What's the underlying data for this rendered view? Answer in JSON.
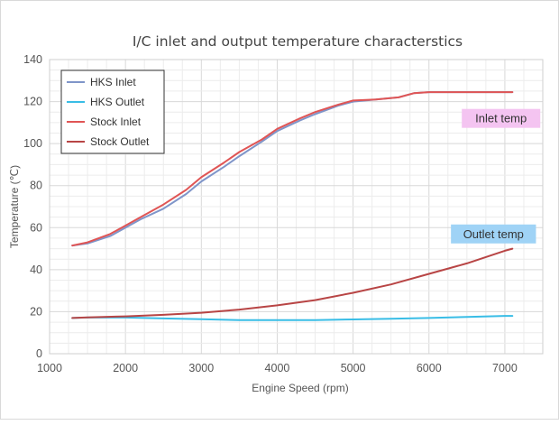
{
  "colors": {
    "hks_inlet": "#7f95c9",
    "hks_outlet": "#39bde6",
    "stock_inlet": "#e05555",
    "stock_outlet": "#b84545",
    "grid_major": "#d8d8d8",
    "grid_minor": "#ececec",
    "inlet_box": "#f4c4f1",
    "outlet_box": "#9fd3f6"
  },
  "chart_data": {
    "type": "line",
    "title": "I/C inlet and output temperature characterstics",
    "xlabel": "Engine Speed (rpm)",
    "ylabel": "Temperature (℃)",
    "xlim": [
      1000,
      7500
    ],
    "ylim": [
      0,
      140
    ],
    "x_ticks": [
      "1000",
      "2000",
      "3000",
      "4000",
      "5000",
      "6000",
      "7000"
    ],
    "y_ticks": [
      "0",
      "20",
      "40",
      "60",
      "80",
      "100",
      "120",
      "140"
    ],
    "grid": true,
    "minor_grid": true,
    "legend_position": "top-left",
    "series": [
      {
        "name": "HKS Inlet",
        "color_key": "hks_inlet",
        "points": [
          [
            1300,
            51.5
          ],
          [
            1500,
            52.5
          ],
          [
            1800,
            56
          ],
          [
            2000,
            60
          ],
          [
            2200,
            64
          ],
          [
            2500,
            69
          ],
          [
            2800,
            76
          ],
          [
            3000,
            82
          ],
          [
            3300,
            89
          ],
          [
            3500,
            94
          ],
          [
            3800,
            101
          ],
          [
            4000,
            106
          ],
          [
            4300,
            111
          ],
          [
            4500,
            114
          ],
          [
            4800,
            118
          ],
          [
            5000,
            120
          ],
          [
            5300,
            121
          ],
          [
            5600,
            122
          ],
          [
            5800,
            124
          ],
          [
            6000,
            124.5
          ],
          [
            6500,
            124.5
          ],
          [
            7000,
            124.5
          ],
          [
            7100,
            124.5
          ]
        ]
      },
      {
        "name": "HKS Outlet",
        "color_key": "hks_outlet",
        "points": [
          [
            1300,
            17
          ],
          [
            1500,
            17.2
          ],
          [
            2000,
            17.2
          ],
          [
            2500,
            16.8
          ],
          [
            3000,
            16.4
          ],
          [
            3500,
            16
          ],
          [
            4000,
            16
          ],
          [
            4500,
            16
          ],
          [
            5000,
            16.3
          ],
          [
            5500,
            16.6
          ],
          [
            6000,
            17
          ],
          [
            6500,
            17.5
          ],
          [
            7000,
            18
          ],
          [
            7100,
            18
          ]
        ]
      },
      {
        "name": "Stock Inlet",
        "color_key": "stock_inlet",
        "points": [
          [
            1300,
            51.5
          ],
          [
            1500,
            53
          ],
          [
            1800,
            57
          ],
          [
            2000,
            61
          ],
          [
            2200,
            65
          ],
          [
            2500,
            71
          ],
          [
            2800,
            78
          ],
          [
            3000,
            84
          ],
          [
            3300,
            91
          ],
          [
            3500,
            96
          ],
          [
            3800,
            102
          ],
          [
            4000,
            107
          ],
          [
            4300,
            112
          ],
          [
            4500,
            115
          ],
          [
            4800,
            118.5
          ],
          [
            5000,
            120.5
          ],
          [
            5300,
            121
          ],
          [
            5600,
            122
          ],
          [
            5800,
            124
          ],
          [
            6000,
            124.5
          ],
          [
            6500,
            124.5
          ],
          [
            7000,
            124.5
          ],
          [
            7100,
            124.5
          ]
        ]
      },
      {
        "name": "Stock Outlet",
        "color_key": "stock_outlet",
        "points": [
          [
            1300,
            17
          ],
          [
            1500,
            17.3
          ],
          [
            2000,
            17.8
          ],
          [
            2500,
            18.5
          ],
          [
            3000,
            19.5
          ],
          [
            3500,
            21
          ],
          [
            4000,
            23
          ],
          [
            4500,
            25.5
          ],
          [
            5000,
            29
          ],
          [
            5500,
            33
          ],
          [
            6000,
            38
          ],
          [
            6500,
            43
          ],
          [
            7000,
            49
          ],
          [
            7100,
            50
          ]
        ]
      }
    ],
    "annotations": [
      {
        "text": "Inlet temp",
        "x": 6950,
        "y": 112,
        "color_key": "inlet_box"
      },
      {
        "text": "Outlet temp",
        "x": 6850,
        "y": 57,
        "color_key": "outlet_box"
      }
    ]
  }
}
